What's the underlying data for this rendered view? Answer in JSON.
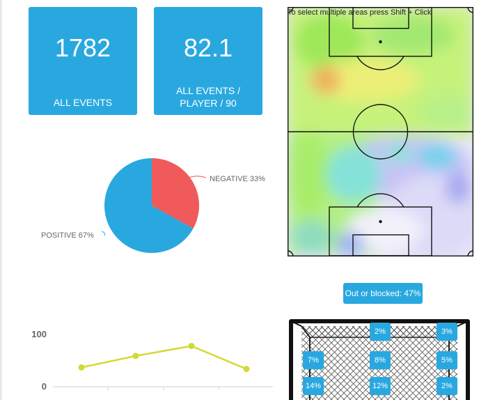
{
  "stats": [
    {
      "value": "1782",
      "label": "ALL EVENTS"
    },
    {
      "value": "82.1",
      "label_line1": "ALL EVENTS /",
      "label_line2": "PLAYER / 90"
    }
  ],
  "pitch": {
    "hint": "To select multiple areas press Shift + Click"
  },
  "pie": {
    "slices": [
      {
        "label": "NEGATIVE 33%",
        "value": 33,
        "color": "#f05a5b"
      },
      {
        "label": "POSITIVE 67%",
        "value": 67,
        "color": "#29a8e0"
      }
    ]
  },
  "chart_data": {
    "type": "line",
    "x": [
      1,
      2,
      3,
      4
    ],
    "values": [
      37,
      59,
      78,
      34
    ],
    "ylim": [
      0,
      100
    ],
    "y_ticks": [
      "100",
      "0"
    ],
    "color": "#d4d932"
  },
  "goal": {
    "out_label": "Out or blocked: 47%",
    "cells": [
      {
        "row": 0,
        "col": 1,
        "label": "2%"
      },
      {
        "row": 0,
        "col": 2,
        "label": "3%"
      },
      {
        "row": 1,
        "col": 0,
        "label": "7%"
      },
      {
        "row": 1,
        "col": 1,
        "label": "8%"
      },
      {
        "row": 1,
        "col": 2,
        "label": "5%"
      },
      {
        "row": 2,
        "col": 0,
        "label": "14%"
      },
      {
        "row": 2,
        "col": 1,
        "label": "12%"
      },
      {
        "row": 2,
        "col": 2,
        "label": "2%"
      }
    ]
  }
}
